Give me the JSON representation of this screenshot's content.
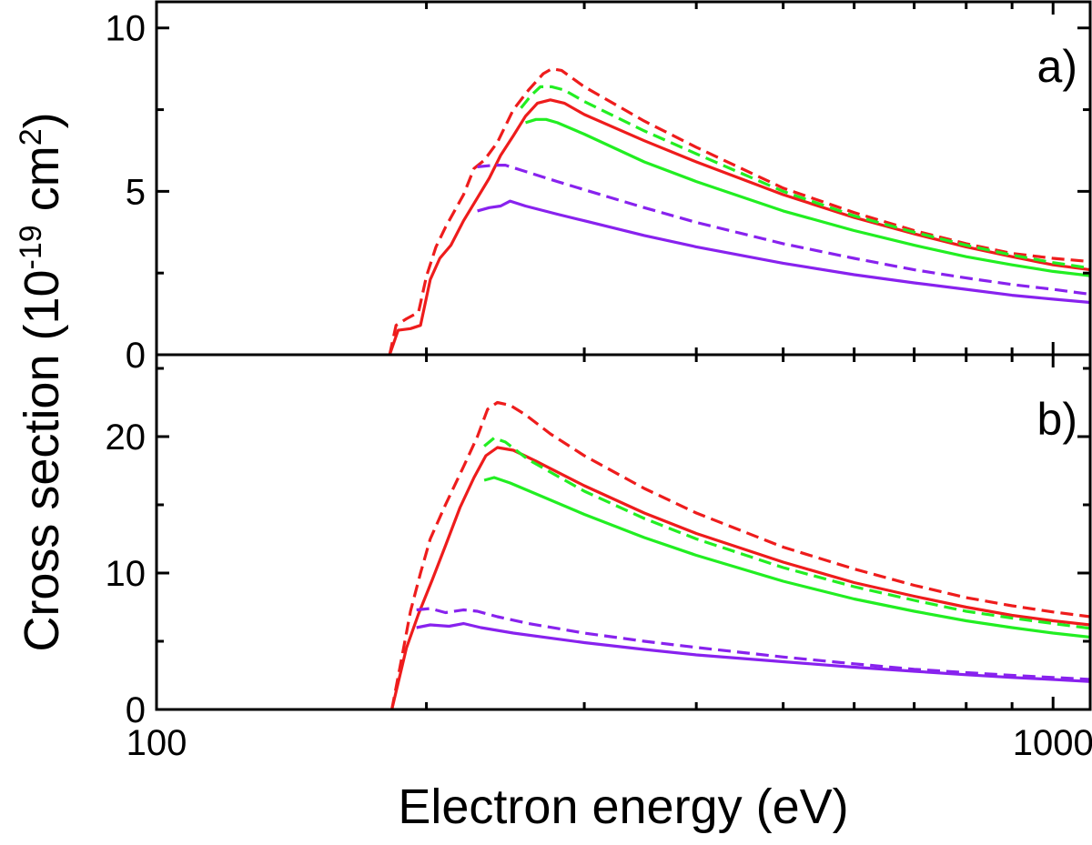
{
  "chart_data": {
    "type": "line",
    "xlabel": "Electron energy (eV)",
    "x_scale": "log",
    "xlim": [
      100,
      1100
    ],
    "x_ticks": [
      {
        "value": 100,
        "label": "100"
      },
      {
        "value": 1000,
        "label": "1000"
      }
    ],
    "ylabel": {
      "prefix": "Cross section (10",
      "exp1": "-19",
      "mid": " cm",
      "exp2": "2",
      "suffix": ")"
    },
    "panels": [
      {
        "label": "a)",
        "ylim": [
          0,
          10.8
        ],
        "y_ticks": [
          {
            "value": 0,
            "label": "0"
          },
          {
            "value": 5,
            "label": "5"
          },
          {
            "value": 10,
            "label": "10"
          }
        ],
        "series": [
          {
            "name": "red-dashed",
            "color": "#ee1c1c",
            "dash": true,
            "points": [
              [
                182,
                0
              ],
              [
                185,
                0.9
              ],
              [
                190,
                1.1
              ],
              [
                196,
                1.3
              ],
              [
                200,
                2.4
              ],
              [
                205,
                3.3
              ],
              [
                210,
                3.9
              ],
              [
                220,
                4.9
              ],
              [
                226,
                5.7
              ],
              [
                232,
                5.95
              ],
              [
                240,
                6.5
              ],
              [
                250,
                7.5
              ],
              [
                260,
                8.1
              ],
              [
                270,
                8.6
              ],
              [
                276,
                8.75
              ],
              [
                283,
                8.7
              ],
              [
                300,
                8.2
              ],
              [
                350,
                7.15
              ],
              [
                400,
                6.35
              ],
              [
                500,
                5.1
              ],
              [
                600,
                4.35
              ],
              [
                700,
                3.8
              ],
              [
                800,
                3.4
              ],
              [
                900,
                3.1
              ],
              [
                1000,
                2.95
              ],
              [
                1100,
                2.85
              ]
            ]
          },
          {
            "name": "red-solid",
            "color": "#ee1c1c",
            "dash": false,
            "points": [
              [
                182,
                0
              ],
              [
                186,
                0.75
              ],
              [
                192,
                0.8
              ],
              [
                197,
                0.9
              ],
              [
                202,
                2.3
              ],
              [
                207,
                2.95
              ],
              [
                213,
                3.35
              ],
              [
                220,
                4.1
              ],
              [
                228,
                4.8
              ],
              [
                235,
                5.4
              ],
              [
                242,
                6.1
              ],
              [
                250,
                6.7
              ],
              [
                258,
                7.3
              ],
              [
                266,
                7.7
              ],
              [
                275,
                7.8
              ],
              [
                285,
                7.7
              ],
              [
                300,
                7.35
              ],
              [
                350,
                6.55
              ],
              [
                400,
                5.9
              ],
              [
                500,
                4.9
              ],
              [
                600,
                4.2
              ],
              [
                700,
                3.7
              ],
              [
                800,
                3.3
              ],
              [
                900,
                3.0
              ],
              [
                1000,
                2.75
              ],
              [
                1100,
                2.6
              ]
            ]
          },
          {
            "name": "green-dashed",
            "color": "#22ee22",
            "dash": true,
            "points": [
              [
                255,
                7.55
              ],
              [
                262,
                7.95
              ],
              [
                268,
                8.2
              ],
              [
                276,
                8.2
              ],
              [
                285,
                8.1
              ],
              [
                300,
                7.75
              ],
              [
                350,
                6.85
              ],
              [
                400,
                6.15
              ],
              [
                500,
                5.0
              ],
              [
                600,
                4.25
              ],
              [
                700,
                3.75
              ],
              [
                800,
                3.35
              ],
              [
                900,
                3.05
              ],
              [
                1000,
                2.82
              ],
              [
                1100,
                2.65
              ]
            ]
          },
          {
            "name": "green-solid",
            "color": "#22ee22",
            "dash": false,
            "points": [
              [
                258,
                7.1
              ],
              [
                265,
                7.2
              ],
              [
                272,
                7.2
              ],
              [
                280,
                7.1
              ],
              [
                300,
                6.75
              ],
              [
                350,
                5.9
              ],
              [
                400,
                5.3
              ],
              [
                500,
                4.4
              ],
              [
                600,
                3.8
              ],
              [
                700,
                3.35
              ],
              [
                800,
                3.0
              ],
              [
                900,
                2.75
              ],
              [
                1000,
                2.55
              ],
              [
                1100,
                2.42
              ]
            ]
          },
          {
            "name": "purple-dashed",
            "color": "#8822ee",
            "dash": true,
            "points": [
              [
                228,
                5.75
              ],
              [
                238,
                5.8
              ],
              [
                245,
                5.8
              ],
              [
                255,
                5.65
              ],
              [
                280,
                5.3
              ],
              [
                300,
                5.05
              ],
              [
                350,
                4.5
              ],
              [
                400,
                4.05
              ],
              [
                500,
                3.4
              ],
              [
                600,
                2.95
              ],
              [
                700,
                2.6
              ],
              [
                800,
                2.35
              ],
              [
                900,
                2.15
              ],
              [
                1000,
                2.0
              ],
              [
                1100,
                1.85
              ]
            ]
          },
          {
            "name": "purple-solid",
            "color": "#8822ee",
            "dash": false,
            "points": [
              [
                228,
                4.4
              ],
              [
                235,
                4.5
              ],
              [
                242,
                4.55
              ],
              [
                248,
                4.7
              ],
              [
                258,
                4.55
              ],
              [
                280,
                4.3
              ],
              [
                300,
                4.1
              ],
              [
                350,
                3.65
              ],
              [
                400,
                3.3
              ],
              [
                500,
                2.8
              ],
              [
                600,
                2.45
              ],
              [
                700,
                2.2
              ],
              [
                800,
                2.0
              ],
              [
                900,
                1.82
              ],
              [
                1000,
                1.7
              ],
              [
                1100,
                1.6
              ]
            ]
          }
        ]
      },
      {
        "label": "b)",
        "ylim": [
          0,
          26
        ],
        "y_ticks": [
          {
            "value": 0,
            "label": "0"
          },
          {
            "value": 10,
            "label": "10"
          },
          {
            "value": 20,
            "label": "20"
          }
        ],
        "series": [
          {
            "name": "red-dashed",
            "color": "#ee1c1c",
            "dash": true,
            "points": [
              [
                183,
                0
              ],
              [
                188,
                4.0
              ],
              [
                192,
                7.2
              ],
              [
                197,
                10.0
              ],
              [
                202,
                12.5
              ],
              [
                210,
                15.0
              ],
              [
                220,
                17.8
              ],
              [
                228,
                20.0
              ],
              [
                234,
                22.0
              ],
              [
                240,
                22.5
              ],
              [
                248,
                22.3
              ],
              [
                258,
                21.6
              ],
              [
                275,
                20.2
              ],
              [
                300,
                18.6
              ],
              [
                350,
                16.2
              ],
              [
                400,
                14.4
              ],
              [
                500,
                11.9
              ],
              [
                600,
                10.3
              ],
              [
                700,
                9.1
              ],
              [
                800,
                8.2
              ],
              [
                900,
                7.6
              ],
              [
                1000,
                7.15
              ],
              [
                1100,
                6.8
              ]
            ]
          },
          {
            "name": "red-solid",
            "color": "#ee1c1c",
            "dash": false,
            "points": [
              [
                183,
                0
              ],
              [
                190,
                4.5
              ],
              [
                196,
                7.0
              ],
              [
                203,
                9.5
              ],
              [
                210,
                12.0
              ],
              [
                218,
                14.8
              ],
              [
                226,
                17.0
              ],
              [
                233,
                18.6
              ],
              [
                240,
                19.2
              ],
              [
                250,
                19.0
              ],
              [
                265,
                18.2
              ],
              [
                300,
                16.4
              ],
              [
                350,
                14.4
              ],
              [
                400,
                12.9
              ],
              [
                500,
                10.8
              ],
              [
                600,
                9.3
              ],
              [
                700,
                8.3
              ],
              [
                800,
                7.5
              ],
              [
                900,
                6.9
              ],
              [
                1000,
                6.5
              ],
              [
                1100,
                6.2
              ]
            ]
          },
          {
            "name": "green-dashed",
            "color": "#22ee22",
            "dash": true,
            "points": [
              [
                232,
                19.3
              ],
              [
                238,
                19.9
              ],
              [
                245,
                19.6
              ],
              [
                260,
                18.3
              ],
              [
                300,
                16.0
              ],
              [
                350,
                14.0
              ],
              [
                400,
                12.5
              ],
              [
                500,
                10.4
              ],
              [
                600,
                9.0
              ],
              [
                700,
                8.0
              ],
              [
                800,
                7.2
              ],
              [
                900,
                6.7
              ],
              [
                1000,
                6.3
              ],
              [
                1100,
                5.95
              ]
            ]
          },
          {
            "name": "green-solid",
            "color": "#22ee22",
            "dash": false,
            "points": [
              [
                232,
                16.8
              ],
              [
                238,
                17.0
              ],
              [
                248,
                16.6
              ],
              [
                265,
                15.8
              ],
              [
                300,
                14.3
              ],
              [
                350,
                12.6
              ],
              [
                400,
                11.3
              ],
              [
                500,
                9.4
              ],
              [
                600,
                8.1
              ],
              [
                700,
                7.2
              ],
              [
                800,
                6.5
              ],
              [
                900,
                6.0
              ],
              [
                1000,
                5.6
              ],
              [
                1100,
                5.3
              ]
            ]
          },
          {
            "name": "purple-dashed",
            "color": "#8822ee",
            "dash": true,
            "points": [
              [
                195,
                7.3
              ],
              [
                202,
                7.4
              ],
              [
                210,
                7.1
              ],
              [
                220,
                7.3
              ],
              [
                228,
                7.2
              ],
              [
                240,
                6.8
              ],
              [
                260,
                6.3
              ],
              [
                300,
                5.6
              ],
              [
                350,
                5.0
              ],
              [
                400,
                4.55
              ],
              [
                500,
                3.85
              ],
              [
                600,
                3.35
              ],
              [
                700,
                2.95
              ],
              [
                800,
                2.7
              ],
              [
                900,
                2.5
              ],
              [
                1000,
                2.35
              ],
              [
                1100,
                2.2
              ]
            ]
          },
          {
            "name": "purple-solid",
            "color": "#8822ee",
            "dash": false,
            "points": [
              [
                195,
                6.0
              ],
              [
                202,
                6.2
              ],
              [
                212,
                6.1
              ],
              [
                220,
                6.3
              ],
              [
                230,
                6.0
              ],
              [
                250,
                5.6
              ],
              [
                300,
                4.9
              ],
              [
                350,
                4.4
              ],
              [
                400,
                4.0
              ],
              [
                500,
                3.5
              ],
              [
                600,
                3.1
              ],
              [
                700,
                2.8
              ],
              [
                800,
                2.55
              ],
              [
                900,
                2.35
              ],
              [
                1000,
                2.2
              ],
              [
                1100,
                2.05
              ]
            ]
          }
        ]
      }
    ]
  }
}
